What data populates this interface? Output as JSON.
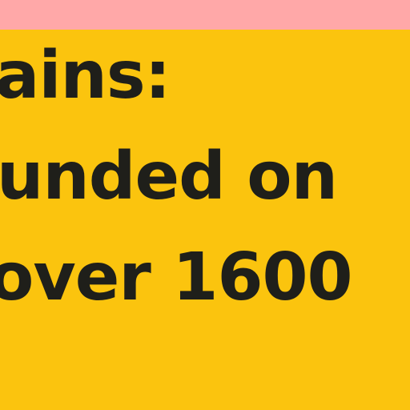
{
  "colors": {
    "top_strip": "#FFA8A8",
    "panel_background": "#FBC40E",
    "text": "#1F1F1A"
  },
  "text_lines": [
    "ains:",
    "unded on",
    "over 1600"
  ]
}
